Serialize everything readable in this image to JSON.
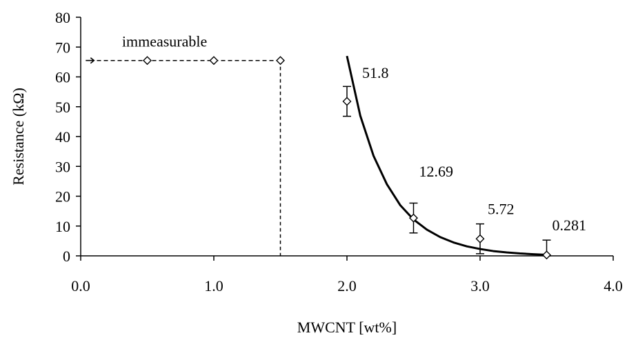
{
  "chart_data": {
    "type": "scatter",
    "xlabel": "MWCNT [wt%]",
    "ylabel": "Resistance (kΩ)",
    "xlim": [
      0,
      4
    ],
    "ylim": [
      0,
      80
    ],
    "x_ticks": [
      0,
      1,
      2,
      3,
      4
    ],
    "x_tick_labels": [
      "0.0",
      "1.0",
      "2.0",
      "3.0",
      "4.0"
    ],
    "y_ticks": [
      0,
      10,
      20,
      30,
      40,
      50,
      60,
      70,
      80
    ],
    "y_tick_labels": [
      "0",
      "10",
      "20",
      "30",
      "40",
      "50",
      "60",
      "70",
      "80"
    ],
    "grid": false,
    "series": [
      {
        "marker": "diamond",
        "x": [
          2.0,
          2.5,
          3.0,
          3.5
        ],
        "y": [
          51.8,
          12.69,
          5.72,
          0.281
        ],
        "error": [
          5,
          5,
          5,
          5
        ],
        "data_labels": [
          "51.8",
          "12.69",
          "5.72",
          "0.281"
        ]
      },
      {
        "marker": "diamond",
        "x": [
          0.5,
          1.0,
          1.5
        ],
        "y": [
          65.5,
          65.5,
          65.5
        ]
      }
    ],
    "fit_curve": {
      "style": "solid-thick",
      "x": [
        2.0,
        2.1,
        2.2,
        2.3,
        2.4,
        2.5,
        2.6,
        2.7,
        2.8,
        2.9,
        3.0,
        3.1,
        3.2,
        3.3,
        3.4,
        3.5
      ],
      "y": [
        67,
        47,
        33.5,
        24,
        17,
        12.2,
        8.8,
        6.3,
        4.5,
        3.2,
        2.3,
        1.6,
        1.15,
        0.8,
        0.55,
        0.35
      ]
    },
    "annotations": [
      {
        "text": "immeasurable",
        "arrow": "dashed-left",
        "from": [
          1.5,
          65.5
        ],
        "to": [
          0.1,
          65.5
        ]
      }
    ],
    "dashed_vertical": {
      "x": 1.5,
      "y_from": 0,
      "y_to": 65.5
    }
  }
}
